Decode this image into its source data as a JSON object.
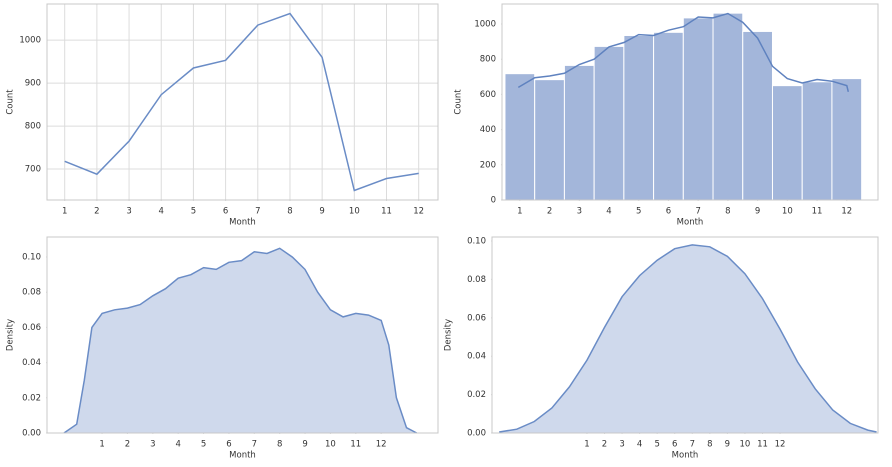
{
  "chart_data": [
    {
      "type": "line",
      "xlabel": "Month",
      "ylabel": "Count",
      "grid": true,
      "x": [
        1,
        2,
        3,
        4,
        5,
        6,
        7,
        8,
        9,
        10,
        11,
        12
      ],
      "series": [
        {
          "color": "#6a8cc6",
          "values": [
            718,
            688,
            765,
            873,
            935,
            953,
            1035,
            1062,
            960,
            650,
            678,
            690
          ]
        }
      ],
      "xlim": [
        0.45,
        12.6
      ],
      "xticks": [
        1,
        2,
        3,
        4,
        5,
        6,
        7,
        8,
        9,
        10,
        11,
        12
      ],
      "ylim": [
        628,
        1084
      ],
      "yticks": [
        700,
        800,
        900,
        1000
      ]
    },
    {
      "type": "histogram",
      "xlabel": "Month",
      "ylabel": "Count",
      "grid": false,
      "bins": [
        0.5,
        1.5,
        2.5,
        3.5,
        4.5,
        5.5,
        6.5,
        7.5,
        8.5,
        9.5,
        10.5,
        11.5,
        12.5
      ],
      "values": [
        718,
        684,
        765,
        873,
        935,
        953,
        1035,
        1062,
        958,
        650,
        672,
        690
      ],
      "color": "#a3b6da",
      "line_color": "#5f82bf",
      "kde": {
        "x": [
          0.95,
          1.5,
          2,
          2.5,
          3,
          3.5,
          4,
          4.5,
          5,
          5.5,
          6,
          6.5,
          7,
          7.5,
          8,
          8.5,
          9,
          9.5,
          10,
          10.5,
          11,
          11.5,
          12,
          12.05
        ],
        "values": [
          640,
          695,
          705,
          720,
          770,
          800,
          870,
          895,
          940,
          935,
          965,
          985,
          1040,
          1035,
          1060,
          1010,
          920,
          760,
          690,
          665,
          685,
          675,
          650,
          615
        ]
      },
      "xlim": [
        0.4,
        13.05
      ],
      "xticks": [
        1,
        2,
        3,
        4,
        5,
        6,
        7,
        8,
        9,
        10,
        11,
        12
      ],
      "ylim": [
        0,
        1114
      ],
      "yticks": [
        0,
        200,
        400,
        600,
        800,
        1000
      ]
    },
    {
      "type": "area",
      "xlabel": "Month",
      "ylabel": "Density",
      "grid": false,
      "color": "#cfd9ec",
      "line_color": "#6a8cc6",
      "x": [
        -0.5,
        0,
        0.3,
        0.6,
        1,
        1.5,
        2,
        2.5,
        3,
        3.5,
        4,
        4.5,
        5,
        5.5,
        6,
        6.5,
        7,
        7.5,
        8,
        8.5,
        9,
        9.5,
        10,
        10.5,
        11,
        11.5,
        12,
        12.3,
        12.6,
        13,
        13.4
      ],
      "values": [
        0,
        0.005,
        0.03,
        0.06,
        0.068,
        0.07,
        0.071,
        0.073,
        0.078,
        0.082,
        0.088,
        0.09,
        0.094,
        0.093,
        0.097,
        0.098,
        0.103,
        0.102,
        0.105,
        0.1,
        0.093,
        0.08,
        0.07,
        0.066,
        0.068,
        0.067,
        0.064,
        0.05,
        0.02,
        0.003,
        0
      ],
      "xlim": [
        -1.17,
        14.24
      ],
      "xticks": [
        1,
        2,
        3,
        4,
        5,
        6,
        7,
        8,
        9,
        10,
        11,
        12
      ],
      "ylim": [
        0,
        0.1114
      ],
      "yticks": [
        {
          "value": 0,
          "label": "0.00"
        },
        0.02,
        0.04,
        0.06,
        0.08,
        {
          "value": 0.1,
          "label": "0.10"
        }
      ]
    },
    {
      "type": "area",
      "xlabel": "Month",
      "ylabel": "Density",
      "grid": false,
      "color": "#cfd9ec",
      "line_color": "#6a8cc6",
      "x": [
        -4,
        -3,
        -2,
        -1,
        0,
        1,
        2,
        3,
        4,
        5,
        6,
        7,
        8,
        9,
        10,
        11,
        12,
        13,
        14,
        15,
        16,
        17,
        17.5
      ],
      "values": [
        0.0005,
        0.002,
        0.006,
        0.013,
        0.024,
        0.038,
        0.055,
        0.071,
        0.082,
        0.09,
        0.096,
        0.098,
        0.097,
        0.092,
        0.083,
        0.07,
        0.054,
        0.037,
        0.023,
        0.012,
        0.005,
        0.0015,
        0.0005
      ],
      "xlim": [
        -4.41,
        17.58
      ],
      "xticks": [
        1,
        2,
        3,
        4,
        5,
        6,
        7,
        8,
        9,
        10,
        11,
        12
      ],
      "ylim": [
        0,
        0.1021
      ],
      "yticks": [
        {
          "value": 0,
          "label": "0.00"
        },
        0.02,
        0.04,
        0.06,
        0.08,
        {
          "value": 0.1,
          "label": "0.10"
        }
      ]
    }
  ]
}
